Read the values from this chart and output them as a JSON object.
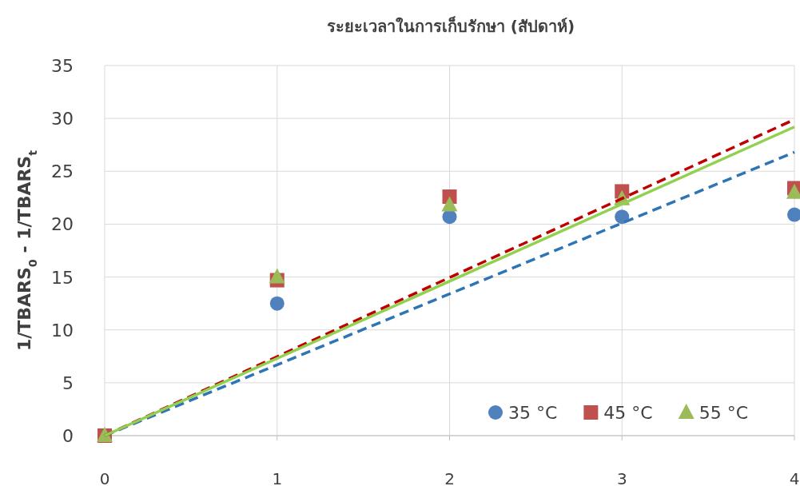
{
  "chart_data": {
    "type": "scatter",
    "title": "ระยะเวลาในการเก็บรักษา (สัปดาห์)",
    "ylabel": "1/TBARS$_{0}$ - 1/TBARS$_{t}$",
    "xlim": [
      0,
      4
    ],
    "xticks": [
      0,
      1,
      2,
      3,
      4
    ],
    "ylim": [
      0,
      35
    ],
    "yticks": [
      0,
      5,
      10,
      15,
      20,
      25,
      30,
      35
    ],
    "grid": true,
    "legend": "bottom right",
    "series": [
      {
        "name": "35 °C",
        "color": "#4f81bd",
        "marker": "circle",
        "x": [
          1,
          2,
          3,
          4
        ],
        "values": [
          12.5,
          20.7,
          20.7,
          20.9
        ]
      },
      {
        "name": "45 °C",
        "color": "#c0504d",
        "marker": "square",
        "x": [
          0,
          1,
          2,
          3,
          4
        ],
        "values": [
          0,
          14.7,
          22.6,
          23.1,
          23.4
        ]
      },
      {
        "name": "55 °C",
        "color": "#9bbb59",
        "marker": "triangle",
        "x": [
          0,
          1,
          2,
          3,
          4
        ],
        "values": [
          0,
          15.0,
          21.8,
          22.4,
          23.0
        ]
      },
      {
        "type": "line",
        "color": "#2e75b6",
        "line_style": "dashed",
        "marker": "none",
        "x": [
          0,
          4
        ],
        "values": [
          0,
          26.8
        ]
      },
      {
        "type": "line",
        "color": "#c00000",
        "line_style": "dashed",
        "marker": "none",
        "x": [
          0,
          4
        ],
        "values": [
          0,
          29.9
        ]
      },
      {
        "type": "line",
        "color": "#92d050",
        "line_style": "solid",
        "marker": "none",
        "x": [
          0,
          4
        ],
        "values": [
          0,
          29.2
        ]
      }
    ]
  }
}
